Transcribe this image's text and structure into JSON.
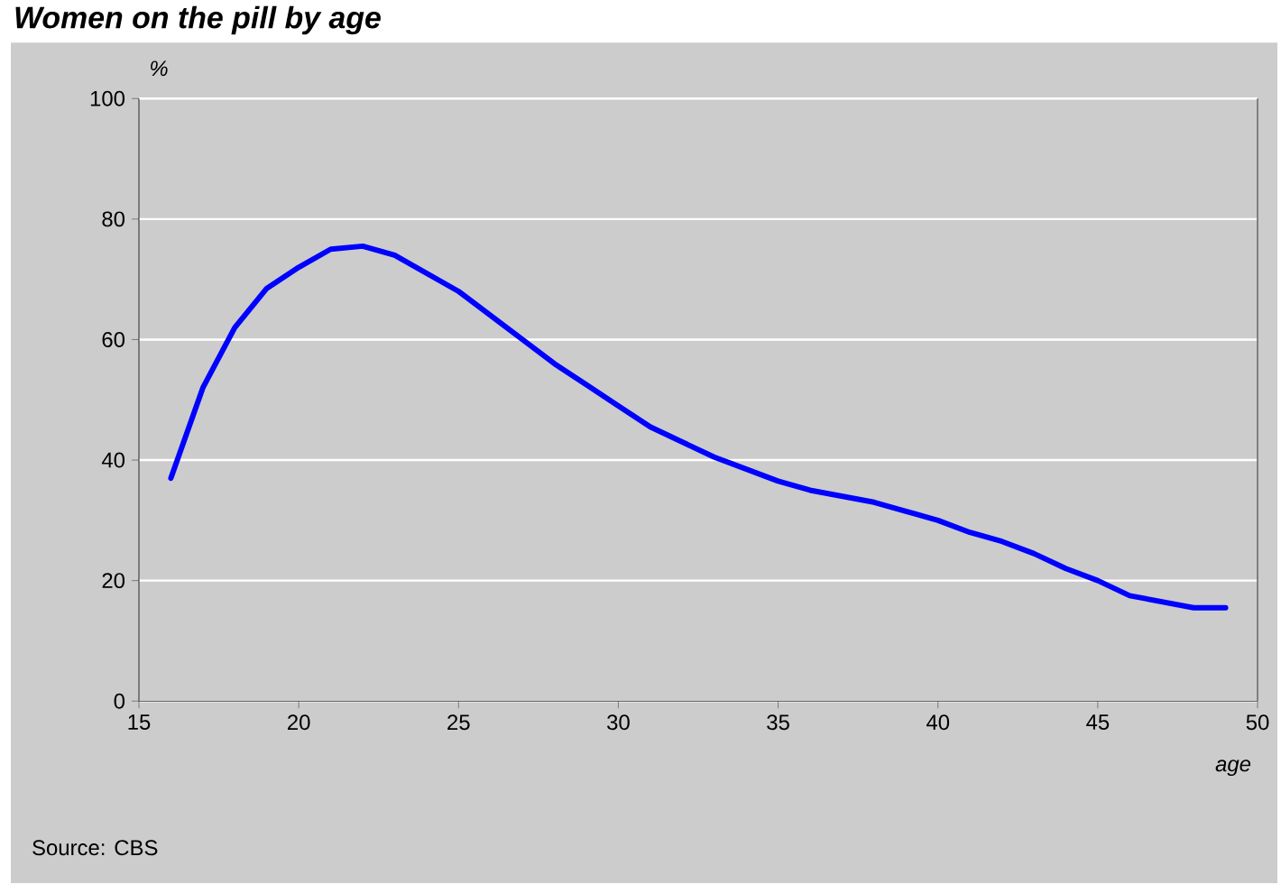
{
  "chart_data": {
    "type": "line",
    "title": "Women on the pill by age",
    "ylabel": "%",
    "xlabel": "age",
    "annotations": [
      "Source: CBS"
    ],
    "x": [
      16,
      17,
      18,
      19,
      20,
      21,
      22,
      23,
      24,
      25,
      26,
      27,
      28,
      29,
      30,
      31,
      32,
      33,
      34,
      35,
      36,
      37,
      38,
      39,
      40,
      41,
      42,
      43,
      44,
      45,
      46,
      47,
      48,
      49
    ],
    "series": [
      {
        "color": "#0000ff",
        "values": [
          37,
          52,
          62,
          68.5,
          72,
          75,
          75.5,
          74,
          71,
          68,
          64,
          60,
          56,
          52.5,
          49,
          45.5,
          43,
          40.5,
          38.5,
          36.5,
          35,
          34,
          33,
          31.5,
          30,
          28,
          26.5,
          24.5,
          22,
          20,
          17.5,
          16.5,
          15.5,
          15.5
        ]
      }
    ],
    "xlim": [
      15,
      50
    ],
    "xticks": [
      15,
      20,
      25,
      30,
      35,
      40,
      45,
      50
    ],
    "ylim": [
      0,
      100
    ],
    "yticks": [
      0,
      20,
      40,
      60,
      80,
      100
    ],
    "grid": "y",
    "marker": "none",
    "line_style": "solid"
  }
}
